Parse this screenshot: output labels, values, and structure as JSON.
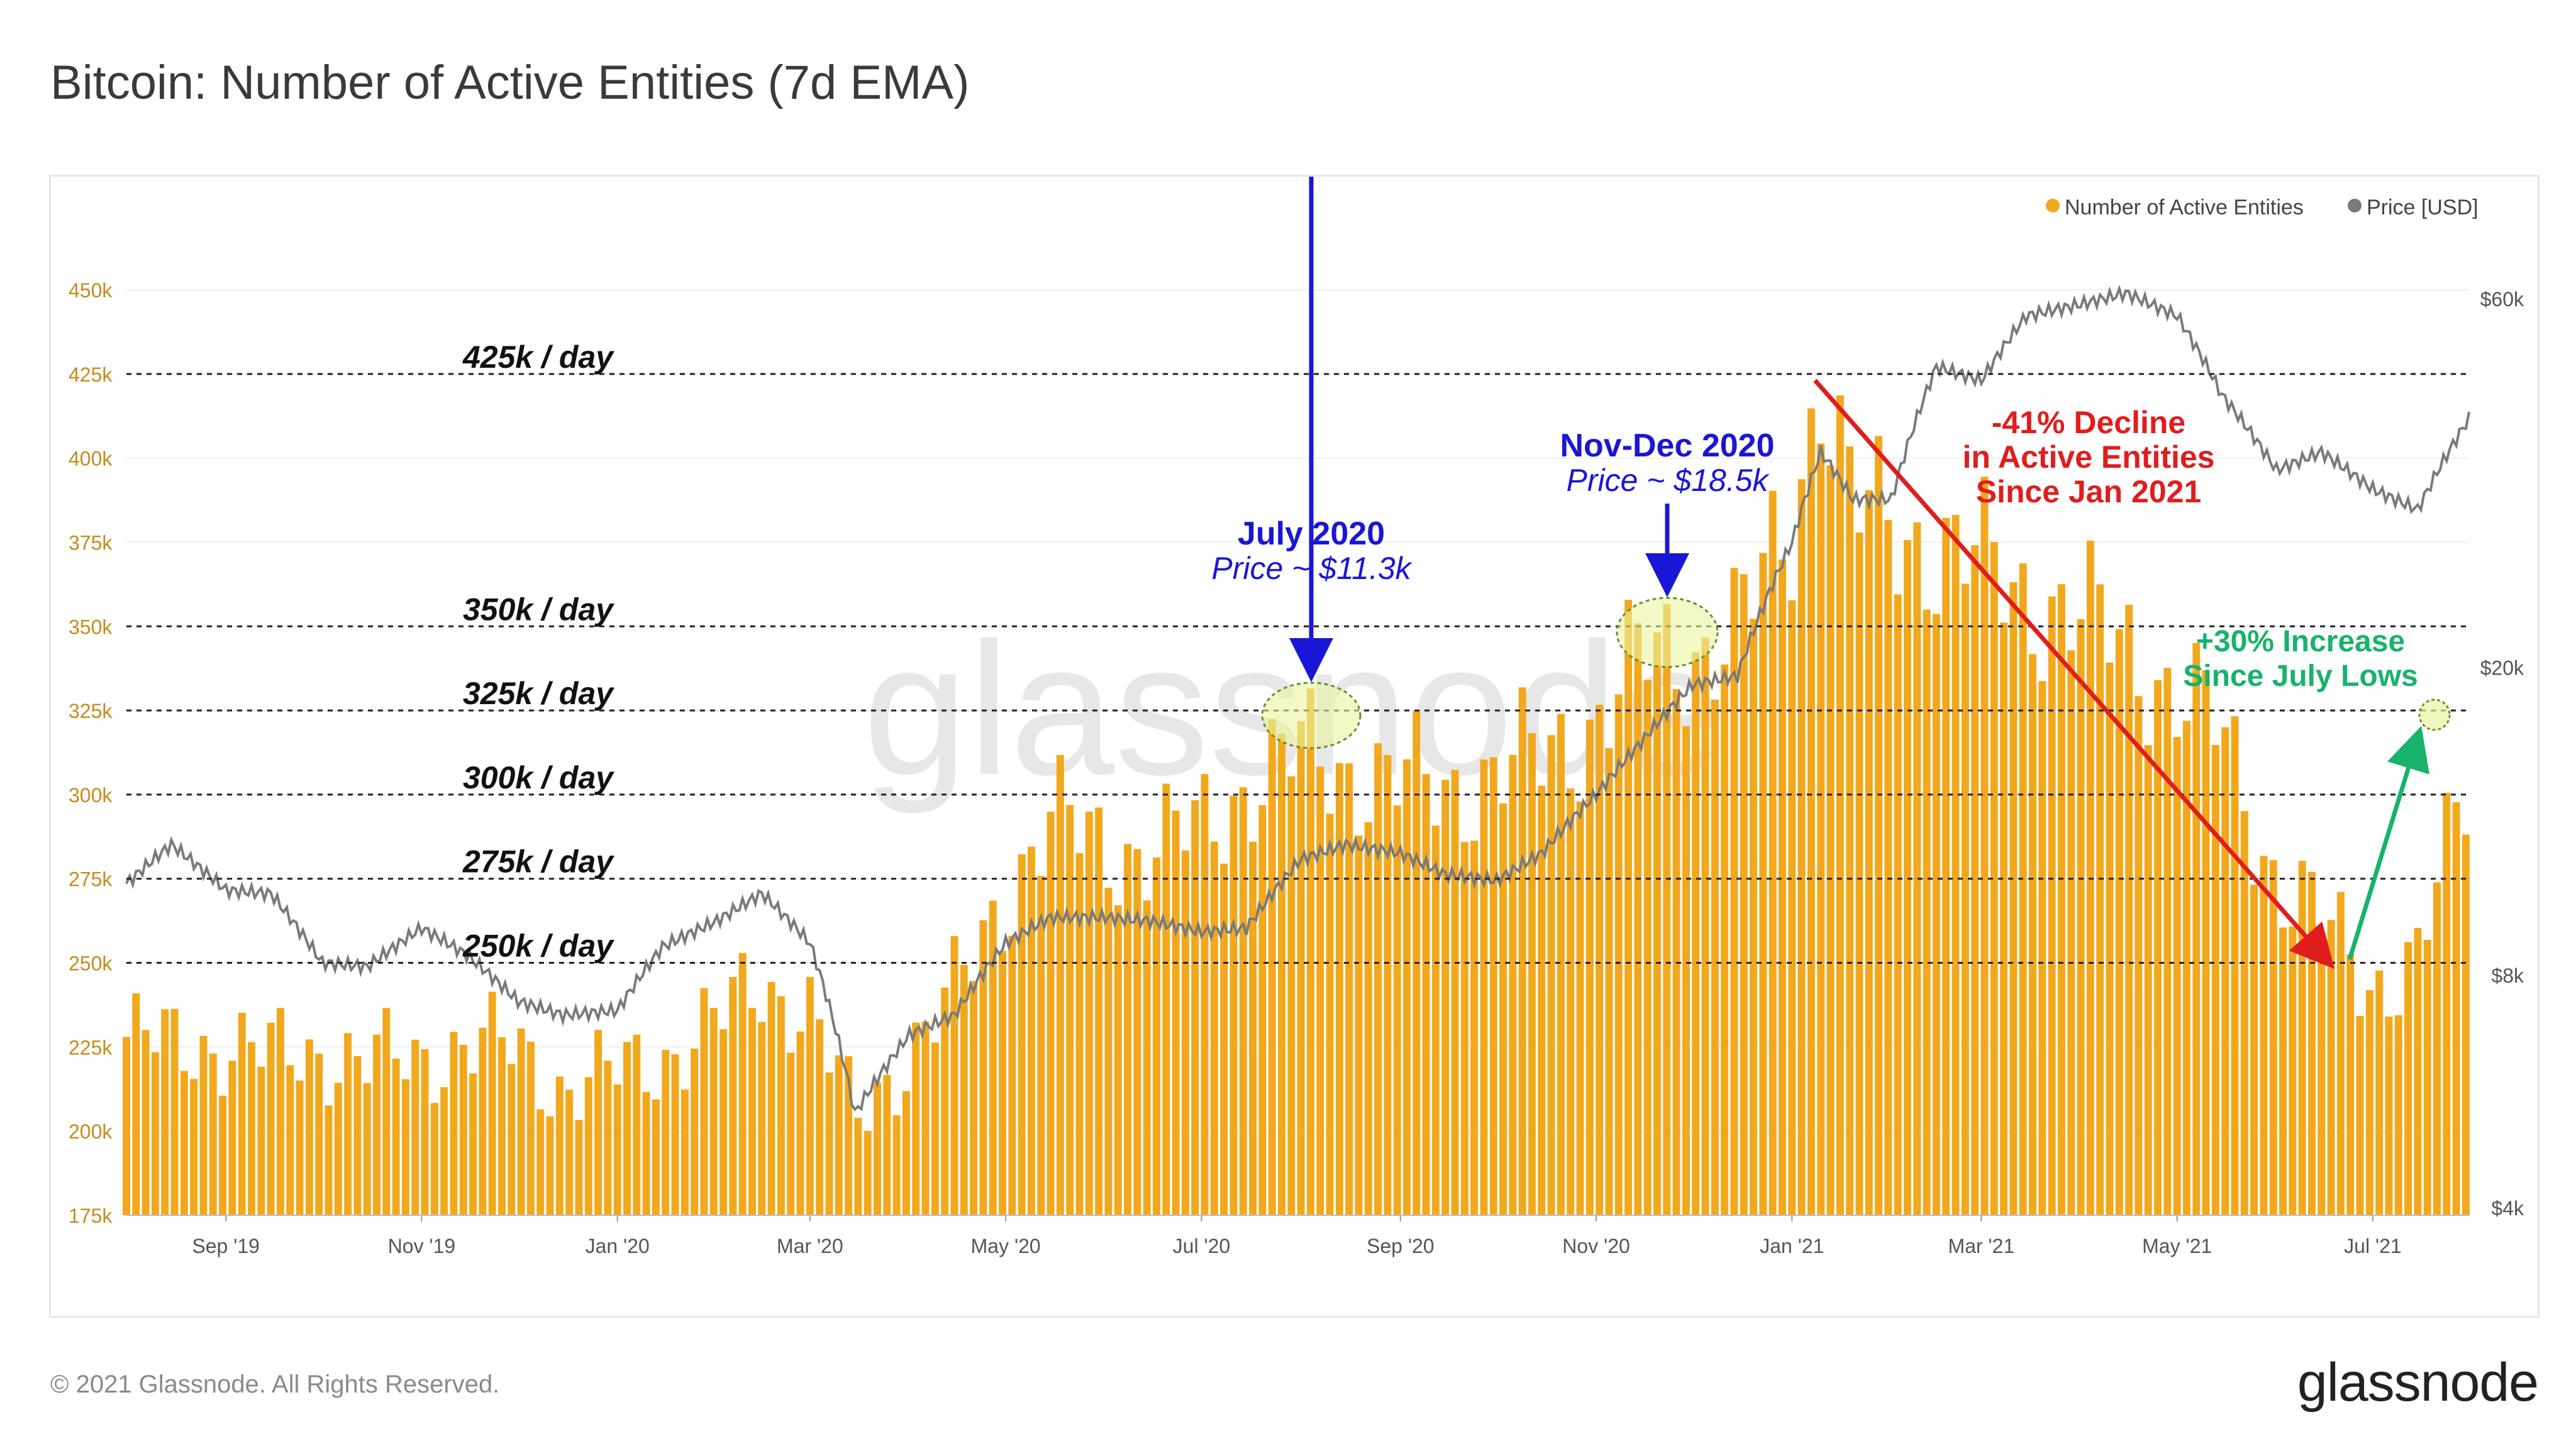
{
  "title": "Bitcoin: Number of Active Entities (7d EMA)",
  "footer": {
    "copyright": "© 2021 Glassnode. All Rights Reserved.",
    "logo": "glassnode"
  },
  "watermark": "glassnode",
  "colors": {
    "bars": "#f2a81d",
    "price": "#7a7a7a",
    "decline": "#e01d1d",
    "increase": "#17b36a",
    "annotation_blue": "#1a16d6",
    "highlight": "#eaf4a0"
  },
  "chart_data": {
    "type": "bar",
    "title": "Bitcoin: Number of Active Entities (7d EMA)",
    "x_tick_labels": [
      "Sep '19",
      "Nov '19",
      "Jan '20",
      "Mar '20",
      "May '20",
      "Jul '20",
      "Sep '20",
      "Nov '20",
      "Jan '21",
      "Mar '21",
      "May '21",
      "Jul '21"
    ],
    "x_range": [
      "2019-08-01",
      "2021-07-31"
    ],
    "y_left_ticks": [
      "175k",
      "200k",
      "225k",
      "250k",
      "275k",
      "300k",
      "325k",
      "350k",
      "375k",
      "400k",
      "425k",
      "450k"
    ],
    "y_left_range": [
      175000,
      450000
    ],
    "y_right_ticks": [
      "$4k",
      "$8k",
      "$20k",
      "$60k"
    ],
    "y_right_range": [
      4000,
      60000
    ],
    "y_right_scale": "log",
    "legend_position": "top-right",
    "series": [
      {
        "name": "Number of Active Entities",
        "axis": "left",
        "dates": [
          "2019-08-01",
          "2019-08-15",
          "2019-09-01",
          "2019-09-15",
          "2019-10-01",
          "2019-10-15",
          "2019-11-01",
          "2019-11-15",
          "2019-12-01",
          "2019-12-15",
          "2020-01-01",
          "2020-01-15",
          "2020-02-01",
          "2020-02-15",
          "2020-03-01",
          "2020-03-15",
          "2020-04-01",
          "2020-04-15",
          "2020-05-01",
          "2020-05-15",
          "2020-06-01",
          "2020-06-15",
          "2020-07-01",
          "2020-07-15",
          "2020-08-01",
          "2020-08-15",
          "2020-09-01",
          "2020-09-15",
          "2020-10-01",
          "2020-10-15",
          "2020-11-01",
          "2020-11-15",
          "2020-12-01",
          "2020-12-15",
          "2021-01-01",
          "2021-01-10",
          "2021-01-20",
          "2021-02-01",
          "2021-02-15",
          "2021-03-01",
          "2021-03-15",
          "2021-04-01",
          "2021-04-15",
          "2021-05-01",
          "2021-05-15",
          "2021-06-01",
          "2021-06-15",
          "2021-07-01",
          "2021-07-15",
          "2021-07-31"
        ],
        "values": [
          228000,
          225000,
          226000,
          222000,
          224000,
          220000,
          222000,
          226000,
          224000,
          213000,
          217000,
          222000,
          232000,
          244000,
          236000,
          203000,
          224000,
          240000,
          271000,
          292000,
          285000,
          283000,
          290000,
          303000,
          312000,
          308000,
          303000,
          302000,
          306000,
          311000,
          322000,
          340000,
          343000,
          348000,
          380000,
          428000,
          385000,
          378000,
          375000,
          368000,
          360000,
          352000,
          345000,
          330000,
          318000,
          275000,
          262000,
          244000,
          250000,
          305000
        ]
      },
      {
        "name": "Price [USD]",
        "axis": "right",
        "dates": [
          "2019-08-01",
          "2019-08-15",
          "2019-09-01",
          "2019-09-15",
          "2019-10-01",
          "2019-10-15",
          "2019-11-01",
          "2019-11-15",
          "2019-12-01",
          "2019-12-15",
          "2020-01-01",
          "2020-01-15",
          "2020-02-01",
          "2020-02-15",
          "2020-03-01",
          "2020-03-15",
          "2020-04-01",
          "2020-04-15",
          "2020-05-01",
          "2020-05-15",
          "2020-06-01",
          "2020-06-15",
          "2020-07-01",
          "2020-07-15",
          "2020-08-01",
          "2020-08-15",
          "2020-09-01",
          "2020-09-15",
          "2020-10-01",
          "2020-10-15",
          "2020-11-01",
          "2020-11-15",
          "2020-12-01",
          "2020-12-15",
          "2021-01-01",
          "2021-01-10",
          "2021-01-20",
          "2021-02-01",
          "2021-02-15",
          "2021-03-01",
          "2021-03-15",
          "2021-04-01",
          "2021-04-15",
          "2021-05-01",
          "2021-05-15",
          "2021-06-01",
          "2021-06-15",
          "2021-07-01",
          "2021-07-15",
          "2021-07-31"
        ],
        "values": [
          10500,
          11800,
          10300,
          10200,
          8300,
          8200,
          9200,
          8500,
          7400,
          7100,
          7200,
          8700,
          9400,
          10200,
          8800,
          5300,
          6700,
          7100,
          8800,
          9500,
          9500,
          9400,
          9100,
          9200,
          11300,
          11800,
          11500,
          10800,
          10600,
          11500,
          13700,
          16000,
          19000,
          19500,
          29000,
          38000,
          33000,
          33000,
          49000,
          47000,
          57000,
          59000,
          61000,
          57000,
          45000,
          36000,
          38000,
          34000,
          32000,
          42000
        ]
      }
    ],
    "reference_lines": [
      {
        "value": 425000,
        "label": "425k / day"
      },
      {
        "value": 350000,
        "label": "350k / day"
      },
      {
        "value": 325000,
        "label": "325k / day"
      },
      {
        "value": 300000,
        "label": "300k / day"
      },
      {
        "value": 275000,
        "label": "275k / day"
      },
      {
        "value": 250000,
        "label": "250k / day"
      }
    ],
    "annotations": {
      "july_2020": {
        "title": "July 2020",
        "subtitle": "Price ~ $11.3k"
      },
      "nov_dec_2020": {
        "title": "Nov-Dec 2020",
        "subtitle": "Price ~ $18.5k"
      },
      "decline": [
        "-41% Decline",
        "in Active Entities",
        "Since Jan 2021"
      ],
      "increase": [
        "+30% Increase",
        "Since July Lows"
      ]
    }
  }
}
